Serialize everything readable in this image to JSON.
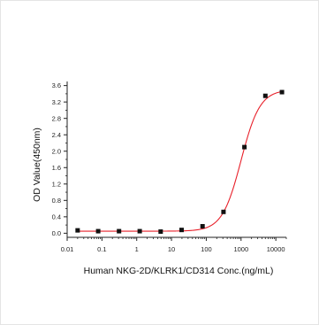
{
  "chart_data": {
    "type": "scatter",
    "title": "",
    "xlabel": "Human NKG-2D/KLRK1/CD314 Conc.(ng/mL)",
    "ylabel": "OD Value(450nm)",
    "x_scale": "log",
    "xlim": [
      0.01,
      20000
    ],
    "ylim": [
      -0.1,
      3.7
    ],
    "x_ticks": [
      0.01,
      0.1,
      1,
      10,
      100,
      1000,
      10000
    ],
    "x_tick_labels": [
      "0.01",
      "0.1",
      "1",
      "10",
      "100",
      "1000",
      "10000"
    ],
    "y_ticks": [
      0.0,
      0.4,
      0.8,
      1.2,
      1.6,
      2.0,
      2.4,
      2.8,
      3.2,
      3.6
    ],
    "y_tick_labels": [
      "0.0",
      "0.4",
      "0.8",
      "1.2",
      "1.6",
      "2.0",
      "2.4",
      "2.8",
      "3.2",
      "3.6"
    ],
    "grid": false,
    "colors": {
      "points": "#111111",
      "fit_curve": "#e8202a",
      "axes": "#222222"
    },
    "series": [
      {
        "type": "scatter",
        "x": [
          0.02,
          0.078,
          0.31,
          1.22,
          4.88,
          19.5,
          78.1,
          312.5,
          1250,
          5000,
          15000
        ],
        "y": [
          0.07,
          0.05,
          0.05,
          0.05,
          0.04,
          0.08,
          0.17,
          0.52,
          2.1,
          3.35,
          3.44
        ]
      },
      {
        "type": "line",
        "fit": "4PL",
        "params": {
          "bottom": 0.05,
          "top": 3.5,
          "ec50": 1000,
          "hill": 1.6
        }
      }
    ]
  }
}
